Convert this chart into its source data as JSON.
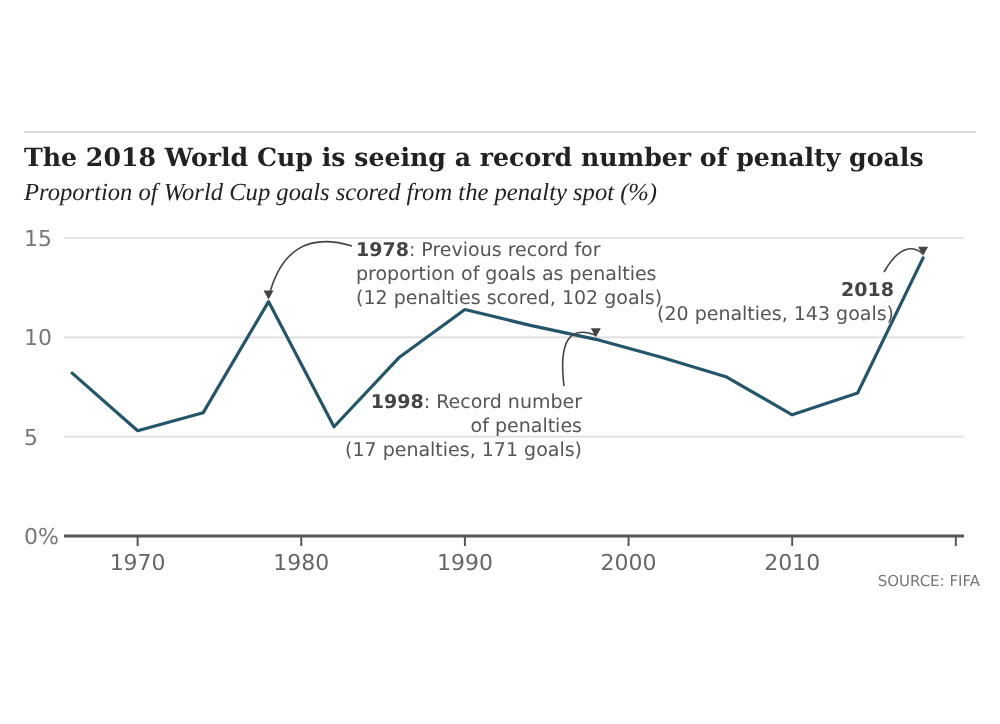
{
  "chart_data": {
    "type": "line",
    "title": "The 2018 World Cup is seeing a record number of penalty goals",
    "subtitle": "Proportion of World Cup goals scored from the penalty spot (%)",
    "x": [
      1966,
      1970,
      1974,
      1978,
      1982,
      1986,
      1990,
      1994,
      1998,
      2002,
      2006,
      2010,
      2014,
      2018
    ],
    "series": [
      {
        "color": "#24566a",
        "values": [
          8.2,
          5.3,
          6.2,
          11.8,
          5.5,
          9.0,
          11.4,
          10.6,
          9.9,
          9.0,
          8.0,
          6.1,
          7.2,
          14.0
        ]
      }
    ],
    "xlim": [
      1965.5,
      2020.5
    ],
    "xticks": [
      1970,
      1980,
      1990,
      2000,
      2010,
      {
        "value": 2020,
        "label": null
      }
    ],
    "ylim": [
      0,
      15
    ],
    "yticks": [
      {
        "value": 0,
        "label": "0%"
      },
      5,
      10,
      15
    ],
    "grid": "y",
    "marker": "none",
    "line_style": "solid",
    "annotations": [
      {
        "text": "1978: Previous record for\nproportion of goals as penalties\n(12 penalties scored, 102 goals)",
        "x": 1978,
        "y": 11.8
      },
      {
        "text": "1998: Record number\nof penalties\n(17 penalties, 171 goals)",
        "x": 1998,
        "y": 9.9
      },
      {
        "text": "2018\n(20 penalties, 143 goals)",
        "x": 2018,
        "y": 14.0
      },
      "SOURCE: FIFA"
    ]
  }
}
